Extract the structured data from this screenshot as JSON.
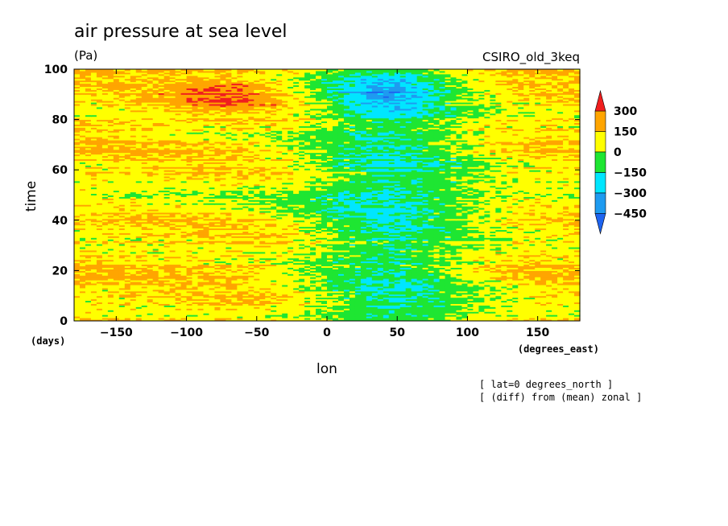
{
  "chart_data": {
    "type": "heatmap",
    "title": "air pressure at sea level",
    "units": "(Pa)",
    "dataset": "CSIRO_old_3keq",
    "xlabel": "lon",
    "ylabel": "time",
    "x_unit_label": "(degrees_east)",
    "y_unit_label": "(days)",
    "xlim": [
      -180,
      180
    ],
    "ylim": [
      0,
      100
    ],
    "xticks": [
      -150,
      -100,
      -50,
      0,
      50,
      100,
      150
    ],
    "yticks": [
      0,
      20,
      40,
      60,
      80,
      100
    ],
    "xtick_labels": [
      "−150",
      "−100",
      "−50",
      "0",
      "50",
      "100",
      "150"
    ],
    "ytick_labels": [
      "0",
      "20",
      "40",
      "60",
      "80",
      "100"
    ],
    "notes": [
      "[ lat=0 degrees_north ]",
      "[ (diff) from (mean) zonal ]"
    ],
    "colorbar": {
      "levels": [
        -450,
        -300,
        -150,
        0,
        150,
        300
      ],
      "labels": [
        "300",
        "150",
        "0",
        "−150",
        "−300",
        "−450"
      ],
      "colors": [
        "#1e64f0",
        "#1e9bf0",
        "#00e6ff",
        "#1ee632",
        "#ffff00",
        "#ffa500",
        "#f01e1e"
      ]
    }
  }
}
